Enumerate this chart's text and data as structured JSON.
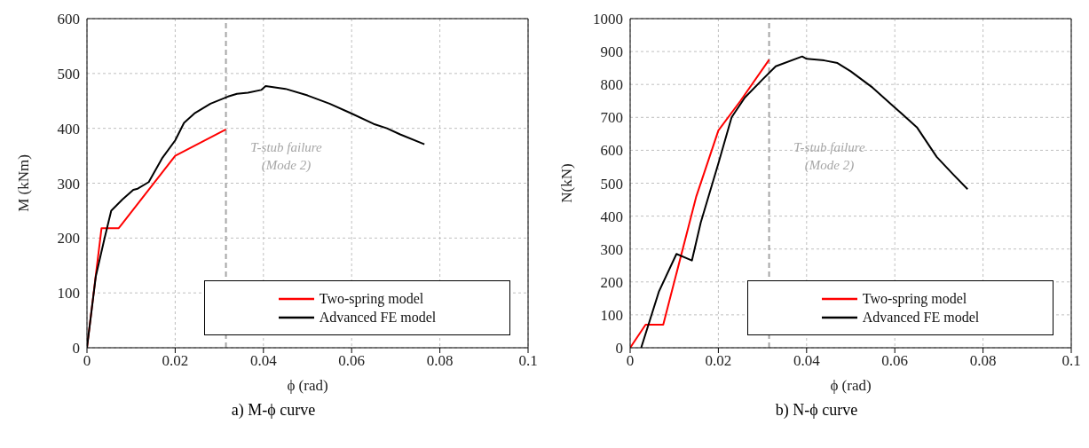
{
  "chart_data": [
    {
      "type": "line",
      "title": "a) M-ϕ curve",
      "xlabel": "ϕ (rad)",
      "ylabel": "M (kNm)",
      "xlim": [
        0,
        0.1
      ],
      "xticks": [
        0,
        0.02,
        0.04,
        0.06,
        0.08,
        0.1
      ],
      "ylim": [
        0,
        600
      ],
      "yticks": [
        0,
        100,
        200,
        300,
        400,
        500,
        600
      ],
      "grid": true,
      "legend": "bottom right",
      "line_style": "solid",
      "marker": "none",
      "ref_lines": [
        {
          "axis": "x",
          "value": 0.0315,
          "label": "T-stub failure\n(Mode 2)",
          "color": "#a6a6a6",
          "line_style": "dashed"
        }
      ],
      "series": [
        {
          "name": "Two-spring model",
          "color": "#ff0000",
          "x": [
            0,
            0.0033,
            0.0072,
            0.02,
            0.0315
          ],
          "values": [
            0,
            218,
            218,
            350,
            398
          ]
        },
        {
          "name": "Advanced FE model",
          "color": "#000000",
          "x": [
            0,
            0.002,
            0.004,
            0.0055,
            0.008,
            0.0105,
            0.0115,
            0.014,
            0.017,
            0.02,
            0.022,
            0.0245,
            0.028,
            0.032,
            0.034,
            0.0365,
            0.0395,
            0.0405,
            0.045,
            0.05,
            0.055,
            0.06,
            0.065,
            0.068,
            0.071,
            0.0765
          ],
          "values": [
            0,
            130,
            200,
            250,
            270,
            288,
            290,
            302,
            345,
            378,
            410,
            428,
            445,
            458,
            463,
            465,
            470,
            477,
            472,
            460,
            445,
            427,
            408,
            400,
            389,
            371
          ]
        }
      ]
    },
    {
      "type": "line",
      "title": "b) N-ϕ curve",
      "xlabel": "ϕ (rad)",
      "ylabel": "N(kN)",
      "xlim": [
        0,
        0.1
      ],
      "xticks": [
        0,
        0.02,
        0.04,
        0.06,
        0.08,
        0.1
      ],
      "ylim": [
        0,
        1000
      ],
      "yticks": [
        0,
        100,
        200,
        300,
        400,
        500,
        600,
        700,
        800,
        900,
        1000
      ],
      "grid": true,
      "legend": "bottom right",
      "line_style": "solid",
      "marker": "none",
      "ref_lines": [
        {
          "axis": "x",
          "value": 0.0315,
          "label": "T-stub failure\n(Mode 2)",
          "color": "#a6a6a6",
          "line_style": "dashed"
        }
      ],
      "series": [
        {
          "name": "Two-spring model",
          "color": "#ff0000",
          "x": [
            0,
            0.0035,
            0.0075,
            0.015,
            0.02,
            0.025,
            0.0315
          ],
          "values": [
            0,
            70,
            70,
            460,
            660,
            750,
            875
          ]
        },
        {
          "name": "Advanced FE model",
          "color": "#000000",
          "x": [
            0.0025,
            0.0065,
            0.0105,
            0.014,
            0.016,
            0.02,
            0.023,
            0.026,
            0.03,
            0.033,
            0.039,
            0.04,
            0.044,
            0.047,
            0.05,
            0.055,
            0.06,
            0.065,
            0.0695,
            0.073,
            0.0765
          ],
          "values": [
            0,
            170,
            285,
            265,
            380,
            560,
            700,
            760,
            815,
            855,
            885,
            878,
            873,
            865,
            840,
            790,
            730,
            670,
            580,
            530,
            482
          ]
        }
      ]
    }
  ]
}
